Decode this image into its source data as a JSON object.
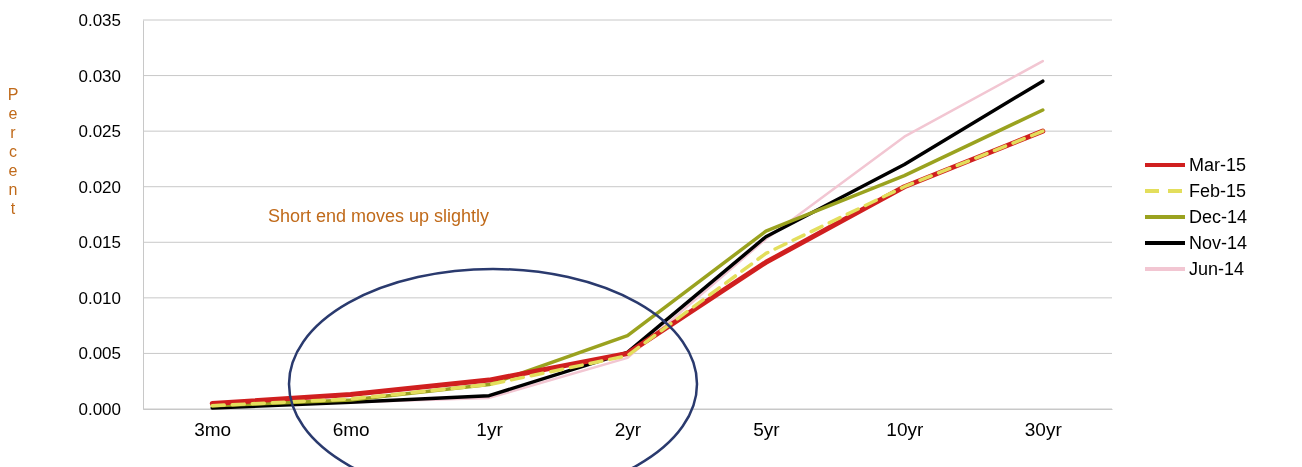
{
  "chart_data": {
    "type": "line",
    "ylabel": "Percent",
    "categories": [
      "3mo",
      "6mo",
      "1yr",
      "2yr",
      "5yr",
      "10yr",
      "30yr"
    ],
    "ylim": [
      0,
      0.035
    ],
    "yticks": [
      {
        "value": 0,
        "label": "0.000"
      },
      {
        "value": 0.005,
        "label": "0.005"
      },
      {
        "value": 0.01,
        "label": "0.010"
      },
      {
        "value": 0.015,
        "label": "0.015"
      },
      {
        "value": 0.02,
        "label": "0.020"
      },
      {
        "value": 0.025,
        "label": "0.025"
      },
      {
        "value": 0.03,
        "label": "0.030"
      },
      {
        "value": 0.035,
        "label": "0.035"
      }
    ],
    "grid": "y",
    "legend": "right",
    "marker": "none",
    "annotations": [
      "Short end moves up slightly"
    ],
    "series": [
      {
        "name": "Mar-15",
        "color": "#d01f1f",
        "values": [
          0.0005,
          0.0013,
          0.0026,
          0.005,
          0.0132,
          0.02,
          0.025
        ]
      },
      {
        "name": "Feb-15",
        "color": "#e3de5c",
        "line_style": "dashed",
        "values": [
          0.0003,
          0.0009,
          0.0022,
          0.0048,
          0.014,
          0.02,
          0.025
        ]
      },
      {
        "name": "Dec-14",
        "color": "#9aa21f",
        "values": [
          0.0003,
          0.0008,
          0.0022,
          0.0066,
          0.016,
          0.021,
          0.0269
        ]
      },
      {
        "name": "Nov-14",
        "color": "#000000",
        "values": [
          0.0001,
          0.0006,
          0.0012,
          0.0051,
          0.0155,
          0.022,
          0.0295
        ]
      },
      {
        "name": "Jun-14",
        "color": "#f2c6d2",
        "values": [
          0.0003,
          0.0006,
          0.001,
          0.0046,
          0.0153,
          0.0245,
          0.0313
        ]
      }
    ]
  }
}
